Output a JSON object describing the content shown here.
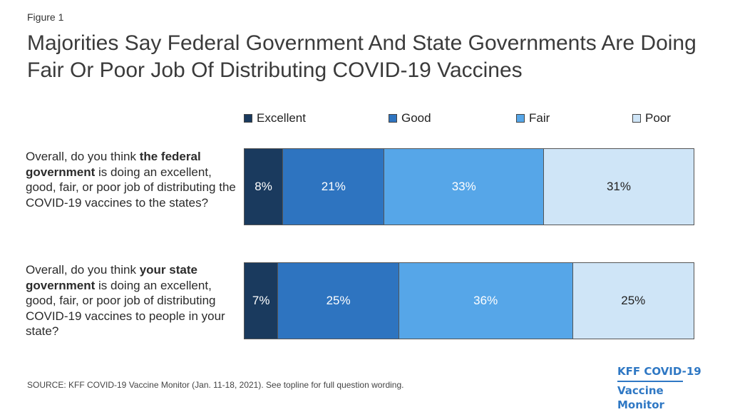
{
  "figure_label": "Figure 1",
  "title": "Majorities Say Federal Government And State Governments Are Doing Fair Or Poor Job Of Distributing COVID-19 Vaccines",
  "source": "SOURCE: KFF COVID-19 Vaccine Monitor (Jan. 11-18, 2021). See topline for full question wording.",
  "logo": {
    "line1": "KFF COVID-19",
    "line2": "Vaccine Monitor"
  },
  "questions": [
    {
      "prefix": "Overall, do you think ",
      "bold": "the federal government",
      "suffix": " is doing an excellent, good, fair, or poor job of distributing the COVID-19 vaccines to the states?"
    },
    {
      "prefix": "Overall, do you think ",
      "bold": "your state government",
      "suffix": " is doing an excellent, good, fair, or poor job of distributing COVID-19 vaccines to people in your state?"
    }
  ],
  "chart_data": {
    "type": "bar",
    "orientation": "horizontal",
    "stacked": true,
    "categories": [
      "the federal government",
      "your state government"
    ],
    "series": [
      {
        "name": "Excellent",
        "color": "#1a3a5e",
        "text_color": "#ffffff",
        "values": [
          8,
          7
        ],
        "labels": [
          "8%",
          "7%"
        ]
      },
      {
        "name": "Good",
        "color": "#2e74c0",
        "text_color": "#ffffff",
        "values": [
          21,
          25
        ],
        "labels": [
          "21%",
          "25%"
        ]
      },
      {
        "name": "Fair",
        "color": "#56a6e8",
        "text_color": "#ffffff",
        "values": [
          33,
          36
        ],
        "labels": [
          "33%",
          "36%"
        ]
      },
      {
        "name": "Poor",
        "color": "#cfe5f7",
        "text_color": "#222222",
        "values": [
          31,
          25
        ],
        "labels": [
          "31%",
          "25%"
        ]
      }
    ],
    "legend_position": "top",
    "grid": false
  }
}
